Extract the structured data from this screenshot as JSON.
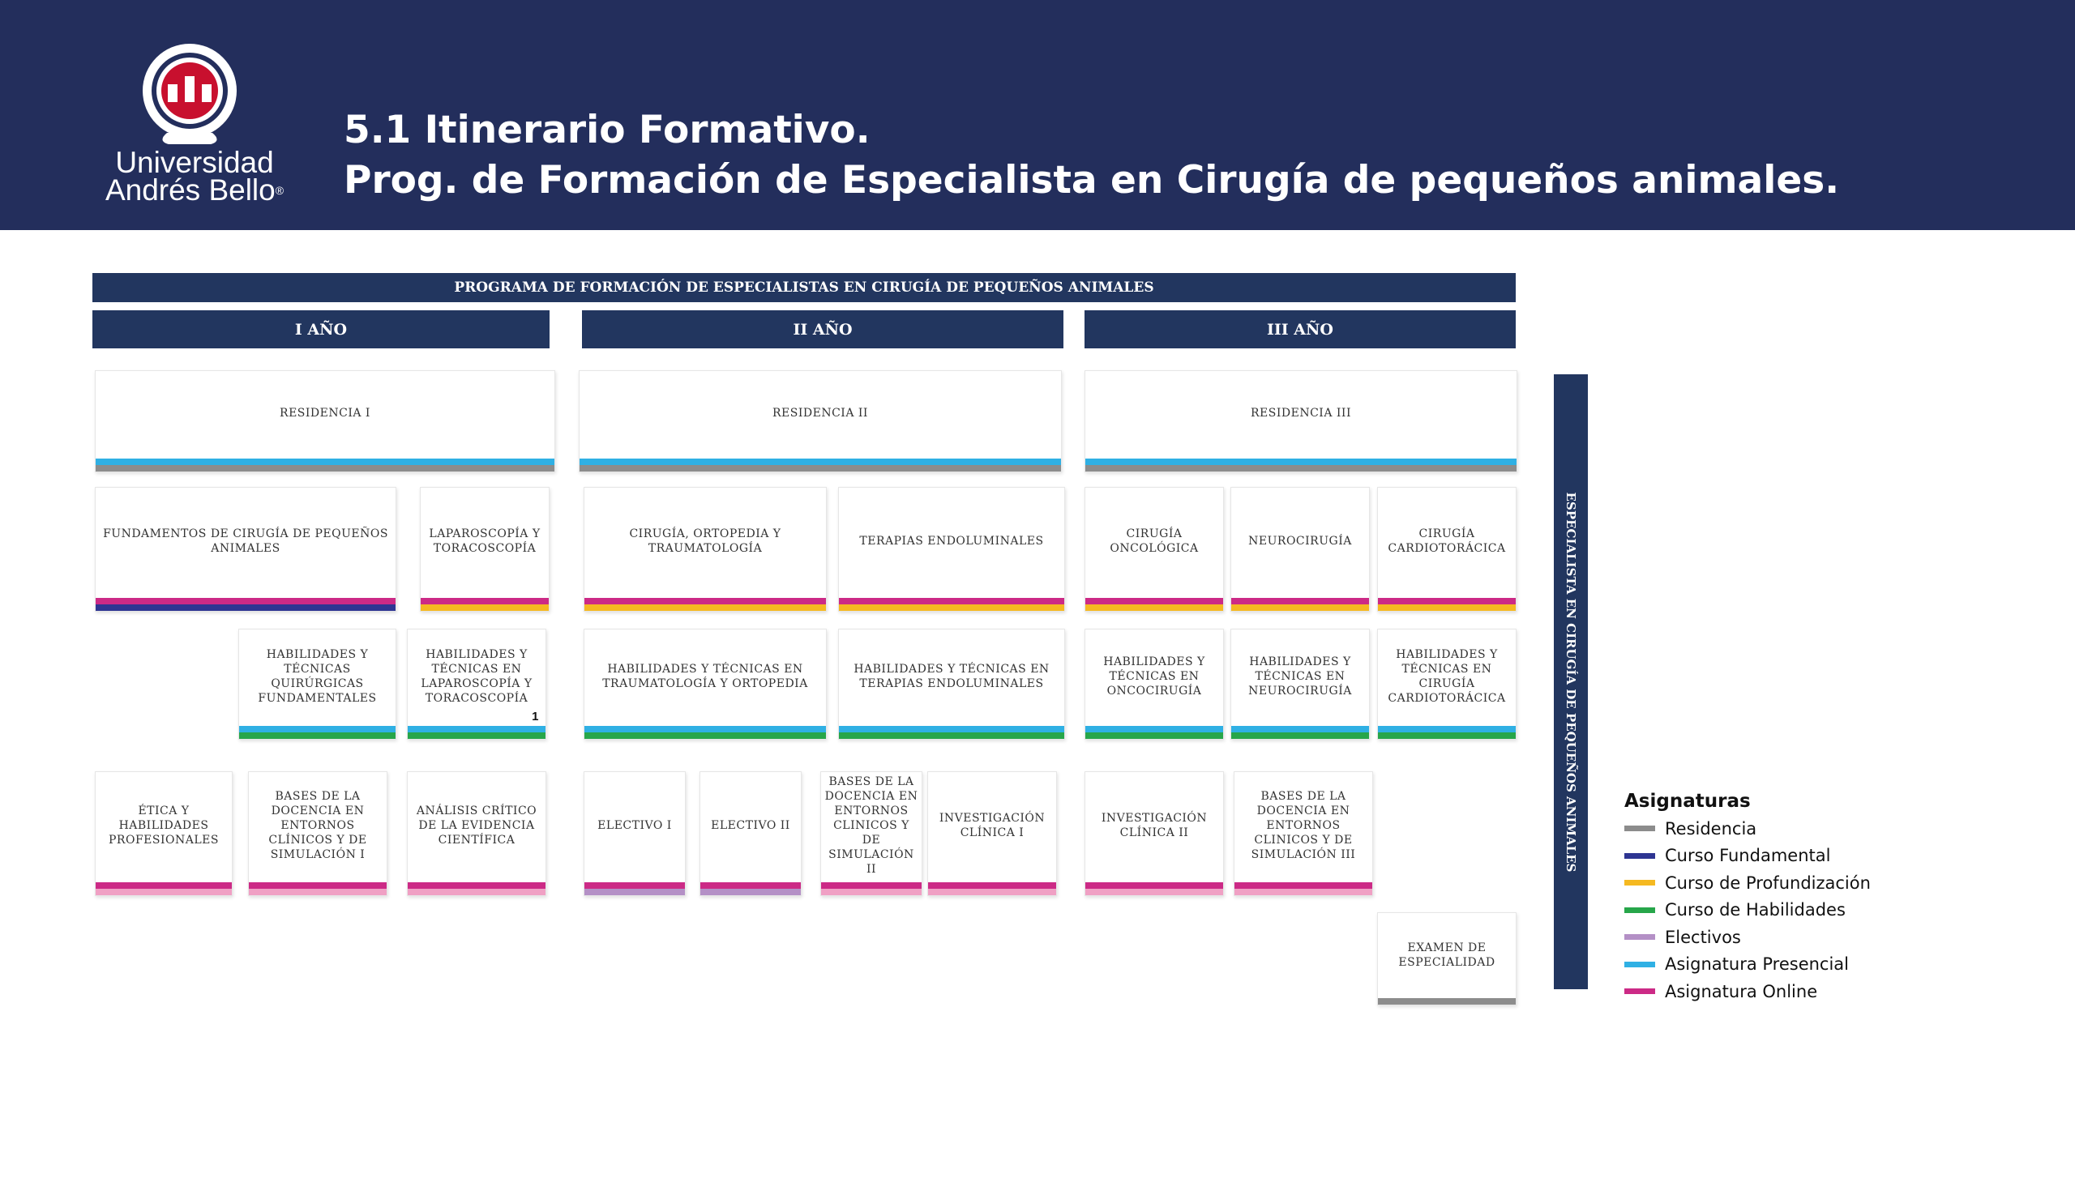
{
  "header": {
    "logo_line1": "Universidad",
    "logo_line2": "Andrés Bello",
    "logo_reg": "®",
    "title_line1": "5.1 Itinerario Formativo.",
    "title_line2": "Prog. de Formación de Especialista en Cirugía de pequeños animales."
  },
  "colors": {
    "header": "#232e5c",
    "bar": "#22365f",
    "residencia": "#8c8c8c",
    "fundamental": "#2e3592",
    "profundizacion": "#f5b921",
    "habilidades": "#27a64a",
    "electivos": "#b490c6",
    "presencial": "#2fb0e4",
    "online": "#cc2a86",
    "online_light": "#f0a0c4"
  },
  "program": {
    "title": "PROGRAMA DE FORMACIÓN DE ESPECIALISTAS EN CIRUGÍA DE PEQUEÑOS ANIMALES",
    "years": [
      "I AÑO",
      "II AÑO",
      "III AÑO"
    ]
  },
  "courses": {
    "res1": "RESIDENCIA I",
    "res2": "RESIDENCIA II",
    "res3": "RESIDENCIA III",
    "fundamentos": "FUNDAMENTOS DE CIRUGÍA DE PEQUEÑOS ANIMALES",
    "laparo": "LAPAROSCOPÍA Y TORACOSCOPÍA",
    "cirugia_orto": "CIRUGÍA, ORTOPEDIA Y TRAUMATOLOGÍA",
    "terapias": "TERAPIAS ENDOLUMINALES",
    "onco": "CIRUGÍA ONCOLÓGICA",
    "neuro": "NEUROCIRUGÍA",
    "cardio": "CIRUGÍA CARDIOTORÁCICA",
    "hab_quir": "HABILIDADES Y TÉCNICAS QUIRÚRGICAS FUNDAMENTALES",
    "hab_laparo": "HABILIDADES Y TÉCNICAS EN LAPAROSCOPÍA Y TORACOSCOPÍA",
    "hab_laparo_note": "1",
    "hab_trauma": "HABILIDADES Y TÉCNICAS EN TRAUMATOLOGÍA Y ORTOPEDIA",
    "hab_terapias": "HABILIDADES Y TÉCNICAS EN TERAPIAS ENDOLUMINALES",
    "hab_onco": "HABILIDADES Y TÉCNICAS EN ONCOCIRUGÍA",
    "hab_neuro": "HABILIDADES Y TÉCNICAS EN NEUROCIRUGÍA",
    "hab_cardio": "HABILIDADES Y TÉCNICAS EN CIRUGÍA CARDIOTORÁCICA",
    "etica": "ÉTICA Y HABILIDADES PROFESIONALES",
    "bases1": "BASES DE LA DOCENCIA EN ENTORNOS CLÍNICOS Y DE SIMULACIÓN I",
    "analisis": "ANÁLISIS CRÍTICO DE LA EVIDENCIA CIENTÍFICA",
    "electivo1": "ELECTIVO I",
    "electivo2": "ELECTIVO II",
    "bases2": "BASES DE LA DOCENCIA EN ENTORNOS CLINICOS Y DE SIMULACIÓN II",
    "invest1": "INVESTIGACIÓN CLÍNICA I",
    "invest2": "INVESTIGACIÓN CLÍNICA II",
    "bases3": "BASES DE LA DOCENCIA EN ENTORNOS CLINICOS Y DE SIMULACIÓN III",
    "examen": "EXAMEN DE ESPECIALIDAD"
  },
  "vertical_label": "ESPECIALISTA EN CIRUGÍA DE PEQUEÑOS ANIMALES",
  "legend": {
    "title": "Asignaturas",
    "items": [
      "Residencia",
      "Curso Fundamental",
      "Curso de Profundización",
      "Curso de Habilidades",
      "Electivos",
      "Asignatura Presencial",
      "Asignatura Online"
    ]
  }
}
